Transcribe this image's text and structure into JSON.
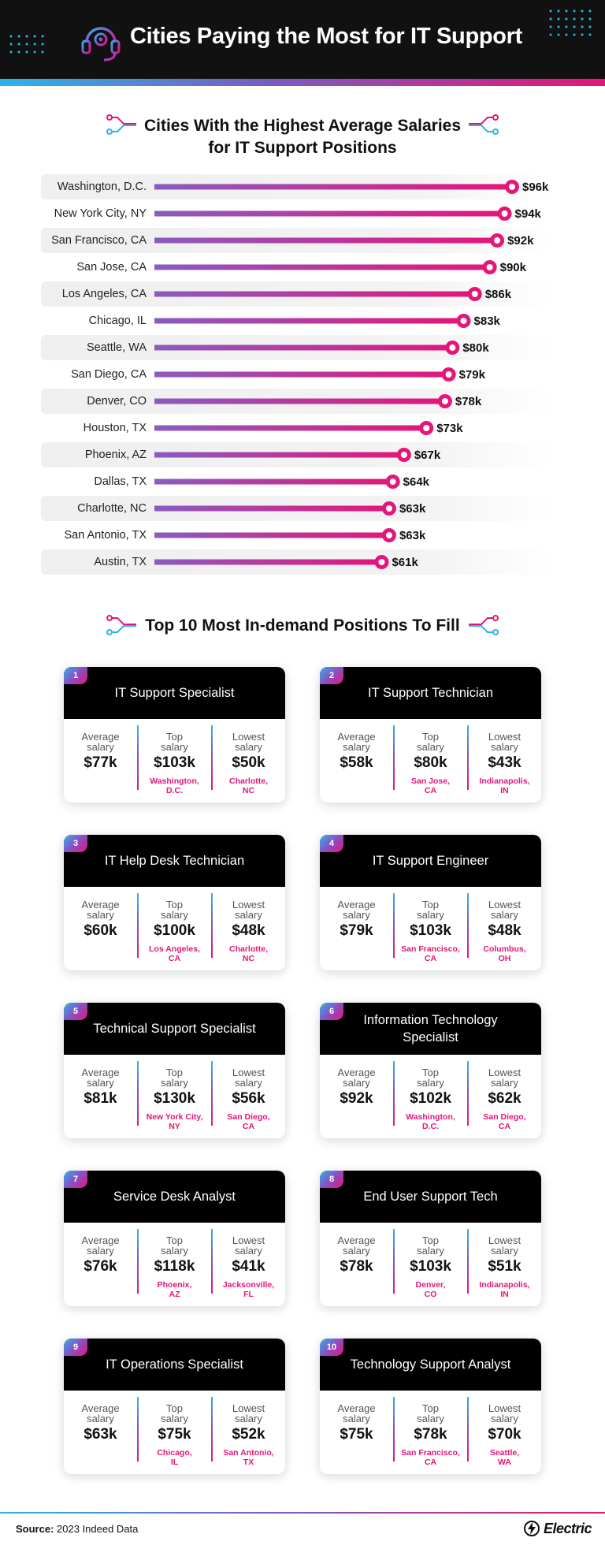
{
  "header": {
    "title": "Cities Paying the Most for IT Support"
  },
  "chart_section": {
    "title_line1": "Cities With the Highest Average Salaries",
    "title_line2": "for IT Support Positions"
  },
  "chart_data": {
    "type": "bar",
    "title": "Cities With the Highest Average Salaries for IT Support Positions",
    "categories": [
      "Washington, D.C.",
      "New York City, NY",
      "San Francisco, CA",
      "San Jose, CA",
      "Los Angeles, CA",
      "Chicago, IL",
      "Seattle, WA",
      "San Diego, CA",
      "Denver, CO",
      "Houston, TX",
      "Phoenix, AZ",
      "Dallas, TX",
      "Charlotte, NC",
      "San Antonio, TX",
      "Austin, TX"
    ],
    "values": [
      96,
      94,
      92,
      90,
      86,
      83,
      80,
      79,
      78,
      73,
      67,
      64,
      63,
      63,
      61
    ],
    "value_labels": [
      "$96k",
      "$94k",
      "$92k",
      "$90k",
      "$86k",
      "$83k",
      "$80k",
      "$79k",
      "$78k",
      "$73k",
      "$67k",
      "$64k",
      "$63k",
      "$63k",
      "$61k"
    ],
    "xlabel": "",
    "ylabel": "",
    "orientation": "horizontal",
    "colors": {
      "bar_start": "#8a5cc0",
      "bar_end": "#e5157a",
      "marker": "#e5157a"
    }
  },
  "positions_section": {
    "title": "Top 10 Most In-demand Positions To Fill"
  },
  "positions": [
    {
      "num": "1",
      "title": "IT Support Specialist",
      "avg_label": "Average salary",
      "avg": "$77k",
      "top_label": "Top salary",
      "top": "$103k",
      "top_city": "Washington, D.C.",
      "low_label": "Lowest salary",
      "low": "$50k",
      "low_city": "Charlotte, NC"
    },
    {
      "num": "2",
      "title": "IT Support Technician",
      "avg_label": "Average salary",
      "avg": "$58k",
      "top_label": "Top salary",
      "top": "$80k",
      "top_city": "San Jose, CA",
      "low_label": "Lowest salary",
      "low": "$43k",
      "low_city": "Indianapolis, IN"
    },
    {
      "num": "3",
      "title": "IT Help Desk Technician",
      "avg_label": "Average salary",
      "avg": "$60k",
      "top_label": "Top salary",
      "top": "$100k",
      "top_city": "Los Angeles, CA",
      "low_label": "Lowest salary",
      "low": "$48k",
      "low_city": "Charlotte, NC"
    },
    {
      "num": "4",
      "title": "IT Support Engineer",
      "avg_label": "Average salary",
      "avg": "$79k",
      "top_label": "Top salary",
      "top": "$103k",
      "top_city": "San Francisco, CA",
      "low_label": "Lowest salary",
      "low": "$48k",
      "low_city": "Columbus, OH"
    },
    {
      "num": "5",
      "title": "Technical Support Specialist",
      "avg_label": "Average salary",
      "avg": "$81k",
      "top_label": "Top salary",
      "top": "$130k",
      "top_city": "New York City, NY",
      "low_label": "Lowest salary",
      "low": "$56k",
      "low_city": "San Diego, CA"
    },
    {
      "num": "6",
      "title": "Information Technology Specialist",
      "avg_label": "Average salary",
      "avg": "$92k",
      "top_label": "Top salary",
      "top": "$102k",
      "top_city": "Washington, D.C.",
      "low_label": "Lowest salary",
      "low": "$62k",
      "low_city": "San Diego, CA"
    },
    {
      "num": "7",
      "title": "Service Desk Analyst",
      "avg_label": "Average salary",
      "avg": "$76k",
      "top_label": "Top salary",
      "top": "$118k",
      "top_city": "Phoenix, AZ",
      "low_label": "Lowest salary",
      "low": "$41k",
      "low_city": "Jacksonville, FL"
    },
    {
      "num": "8",
      "title": "End User Support Tech",
      "avg_label": "Average salary",
      "avg": "$78k",
      "top_label": "Top salary",
      "top": "$103k",
      "top_city": "Denver, CO",
      "low_label": "Lowest salary",
      "low": "$51k",
      "low_city": "Indianapolis, IN"
    },
    {
      "num": "9",
      "title": "IT Operations Specialist",
      "avg_label": "Average salary",
      "avg": "$63k",
      "top_label": "Top salary",
      "top": "$75k",
      "top_city": "Chicago, IL",
      "low_label": "Lowest salary",
      "low": "$52k",
      "low_city": "San Antonio, TX"
    },
    {
      "num": "10",
      "title": "Technology Support Analyst",
      "avg_label": "Average salary",
      "avg": "$75k",
      "top_label": "Top salary",
      "top": "$78k",
      "top_city": "San Francisco, CA",
      "low_label": "Lowest salary",
      "low": "$70k",
      "low_city": "Seattle, WA"
    }
  ],
  "footer": {
    "source_label": "Source:",
    "source_text": "2023 Indeed Data",
    "brand": "Electric"
  }
}
